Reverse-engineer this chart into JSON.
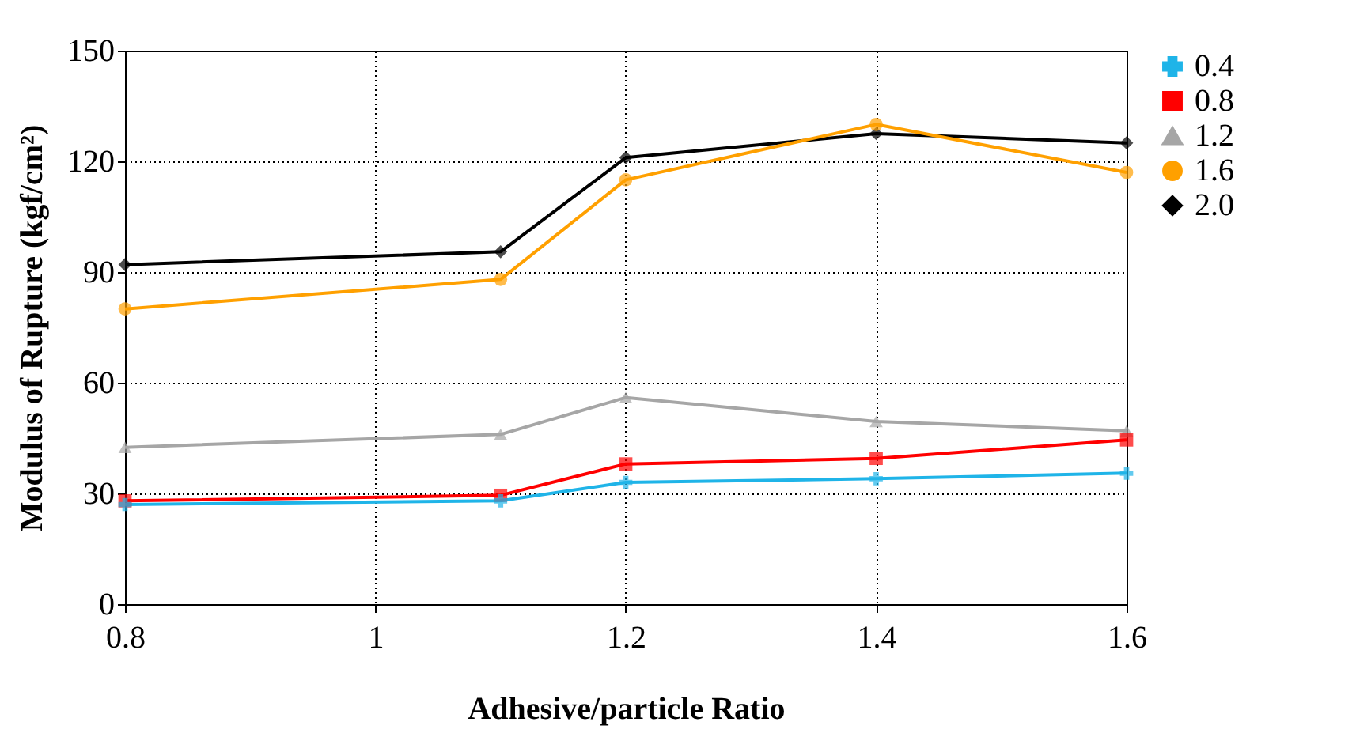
{
  "chart_data": {
    "type": "line",
    "xlabel": "Adhesive/particle Ratio",
    "ylabel": "Modulus of Rupture (kgf/cm²)",
    "x": [
      0.8,
      1.1,
      1.2,
      1.4,
      1.6
    ],
    "xlim": [
      0.8,
      1.6
    ],
    "xticks": [
      0.8,
      1,
      1.2,
      1.4,
      1.6
    ],
    "ylim": [
      0,
      150
    ],
    "yticks": [
      0,
      30,
      60,
      90,
      120,
      150
    ],
    "grid": true,
    "legend": "right",
    "line_style": "solid",
    "series": [
      {
        "name": "0.4",
        "color": "#1fb4e8",
        "marker": "cross",
        "values": [
          27,
          28,
          33,
          34,
          35.5
        ]
      },
      {
        "name": "0.8",
        "color": "#ff0000",
        "marker": "square",
        "values": [
          28,
          29.5,
          38,
          39.5,
          44.5
        ]
      },
      {
        "name": "1.2",
        "color": "#a6a6a6",
        "marker": "triangle",
        "values": [
          42.5,
          46,
          56,
          49.5,
          47
        ]
      },
      {
        "name": "1.6",
        "color": "#ffa000",
        "marker": "circle",
        "values": [
          80,
          88,
          115,
          130,
          117
        ]
      },
      {
        "name": "2.0",
        "color": "#000000",
        "marker": "diamond",
        "values": [
          92,
          95.5,
          121,
          127.5,
          125
        ]
      }
    ]
  }
}
